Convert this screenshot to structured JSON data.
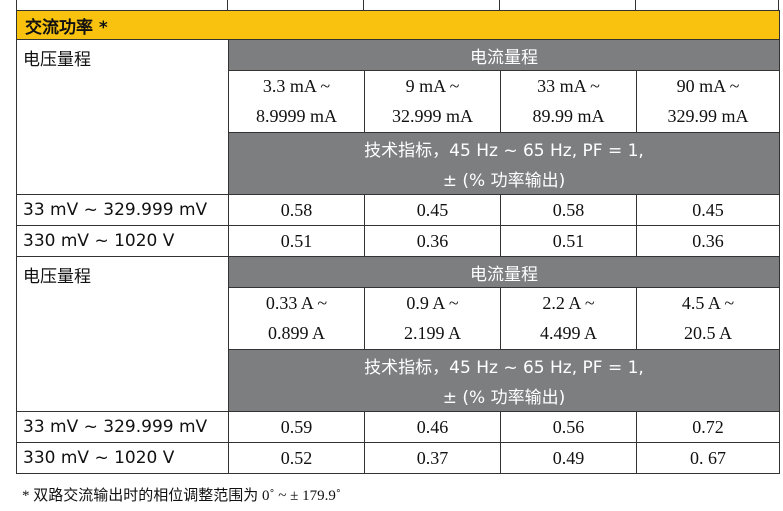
{
  "header": {
    "title": "交流功率 *"
  },
  "voltage_range_label": "电压量程",
  "current_range_label": "电流量程",
  "spec_line1": "技术指标，45 Hz ~ 65 Hz, PF = 1,",
  "spec_line2": "± (% 功率输出)",
  "section1": {
    "ranges": [
      {
        "low": "3.3 mA ~",
        "high": "8.9999 mA"
      },
      {
        "low": "9 mA ~",
        "high": "32.999 mA"
      },
      {
        "low": "33 mA ~",
        "high": "89.99 mA"
      },
      {
        "low": "90 mA ~",
        "high": "329.99 mA"
      }
    ],
    "rows": [
      {
        "label": "33 mV ~ 329.999 mV",
        "values": [
          "0.58",
          "0.45",
          "0.58",
          "0.45"
        ]
      },
      {
        "label": "330 mV ~ 1020 V",
        "values": [
          "0.51",
          "0.36",
          "0.51",
          "0.36"
        ]
      }
    ]
  },
  "section2": {
    "ranges": [
      {
        "low": "0.33 A ~",
        "high": "0.899 A"
      },
      {
        "low": "0.9 A ~",
        "high": "2.199 A"
      },
      {
        "low": "2.2 A ~",
        "high": "4.499 A"
      },
      {
        "low": "4.5 A ~",
        "high": "20.5 A"
      }
    ],
    "rows": [
      {
        "label": "33 mV ~ 329.999 mV",
        "values": [
          "0.59",
          "0.46",
          "0.56",
          "0.72"
        ]
      },
      {
        "label": "330 mV ~ 1020 V",
        "values": [
          "0.52",
          "0.37",
          "0.49",
          "0. 67"
        ]
      }
    ]
  },
  "footnote": "* 双路交流输出时的相位调整范围为 0˚ ~ ± 179.9˚"
}
